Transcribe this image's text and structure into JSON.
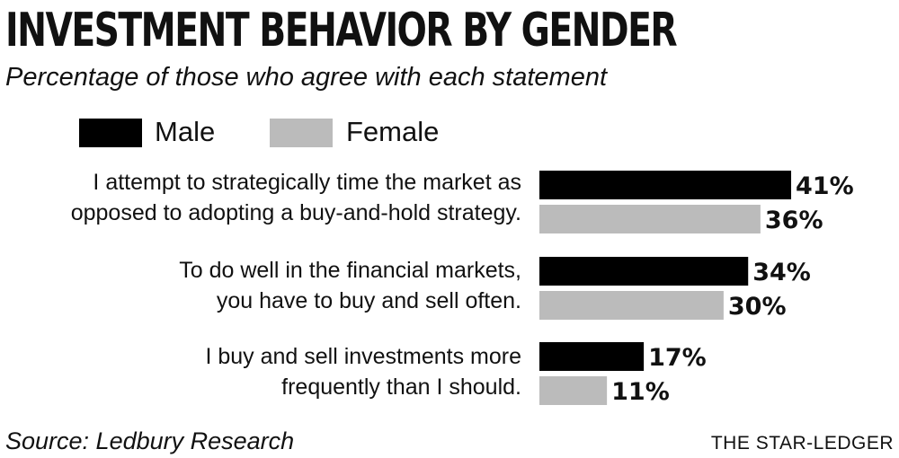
{
  "title": "INVESTMENT BEHAVIOR BY GENDER",
  "subtitle": "Percentage of those who agree with each statement",
  "legend": [
    {
      "label": "Male",
      "color": "#000000"
    },
    {
      "label": "Female",
      "color": "#bbbbbb"
    }
  ],
  "source": "Source: Ledbury Research",
  "credit": "THE STAR-LEDGER",
  "chart_data": {
    "type": "bar",
    "orientation": "horizontal",
    "categories": [
      [
        "I attempt to strategically time the market as",
        "opposed to adopting a buy-and-hold strategy."
      ],
      [
        "To do well in the financial markets,",
        "you have to buy and sell often."
      ],
      [
        "I buy and sell investments more",
        "frequently than I should."
      ]
    ],
    "series": [
      {
        "name": "Male",
        "values": [
          41,
          34,
          17
        ],
        "labels": [
          "41%",
          "34%",
          "17%"
        ],
        "color": "#000000"
      },
      {
        "name": "Female",
        "values": [
          36,
          30,
          11
        ],
        "labels": [
          "36%",
          "30%",
          "11%"
        ],
        "color": "#bbbbbb"
      }
    ],
    "title": "INVESTMENT BEHAVIOR BY GENDER",
    "xlabel": "",
    "ylabel": "",
    "grid": false,
    "legend_position": "top-left"
  }
}
